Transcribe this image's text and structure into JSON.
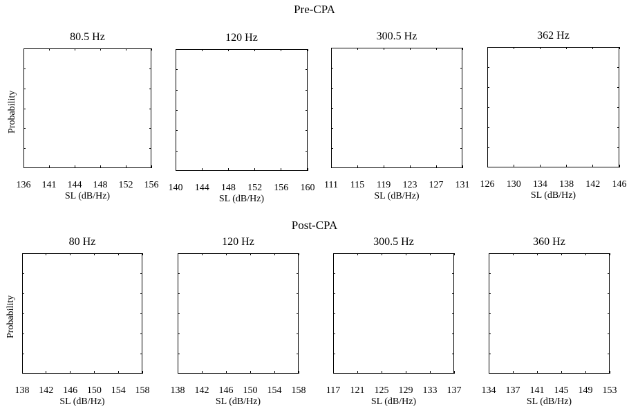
{
  "figure": {
    "groups": [
      {
        "title": "Pre-CPA"
      },
      {
        "title": "Post-CPA"
      }
    ]
  },
  "chart_data": [
    {
      "type": "line",
      "group": "Pre-CPA",
      "title": "80.5 Hz",
      "xlabel": "SL (dB/Hz)",
      "ylabel": "Probability",
      "xticks": [
        "136",
        "141",
        "144",
        "148",
        "152",
        "156"
      ],
      "xlim": [
        136,
        156
      ],
      "yticks": [],
      "series": []
    },
    {
      "type": "line",
      "group": "Pre-CPA",
      "title": "120 Hz",
      "xlabel": "SL (dB/Hz)",
      "ylabel": "",
      "xticks": [
        "140",
        "144",
        "148",
        "152",
        "156",
        "160"
      ],
      "xlim": [
        140,
        160
      ],
      "yticks": [],
      "series": []
    },
    {
      "type": "line",
      "group": "Pre-CPA",
      "title": "300.5 Hz",
      "xlabel": "SL (dB/Hz)",
      "ylabel": "",
      "xticks": [
        "111",
        "115",
        "119",
        "123",
        "127",
        "131"
      ],
      "xlim": [
        111,
        131
      ],
      "yticks": [],
      "series": []
    },
    {
      "type": "line",
      "group": "Pre-CPA",
      "title": "362 Hz",
      "xlabel": "SL (dB/Hz)",
      "ylabel": "",
      "xticks": [
        "126",
        "130",
        "134",
        "138",
        "142",
        "146"
      ],
      "xlim": [
        126,
        146
      ],
      "yticks": [],
      "series": []
    },
    {
      "type": "line",
      "group": "Post-CPA",
      "title": "80 Hz",
      "xlabel": "SL (dB/Hz)",
      "ylabel": "Probability",
      "xticks": [
        "138",
        "142",
        "146",
        "150",
        "154",
        "158"
      ],
      "xlim": [
        138,
        158
      ],
      "yticks": [],
      "series": []
    },
    {
      "type": "line",
      "group": "Post-CPA",
      "title": "120 Hz",
      "xlabel": "SL (dB/Hz)",
      "ylabel": "",
      "xticks": [
        "138",
        "142",
        "146",
        "150",
        "154",
        "158"
      ],
      "xlim": [
        138,
        158
      ],
      "yticks": [],
      "series": []
    },
    {
      "type": "line",
      "group": "Post-CPA",
      "title": "300.5 Hz",
      "xlabel": "SL (dB/Hz)",
      "ylabel": "",
      "xticks": [
        "117",
        "121",
        "125",
        "129",
        "133",
        "137"
      ],
      "xlim": [
        117,
        137
      ],
      "yticks": [],
      "series": []
    },
    {
      "type": "line",
      "group": "Post-CPA",
      "title": "360 Hz",
      "xlabel": "SL (dB/Hz)",
      "ylabel": "",
      "xticks": [
        "134",
        "137",
        "141",
        "145",
        "149",
        "153"
      ],
      "xlim": [
        134,
        153
      ],
      "yticks": [],
      "series": []
    }
  ]
}
